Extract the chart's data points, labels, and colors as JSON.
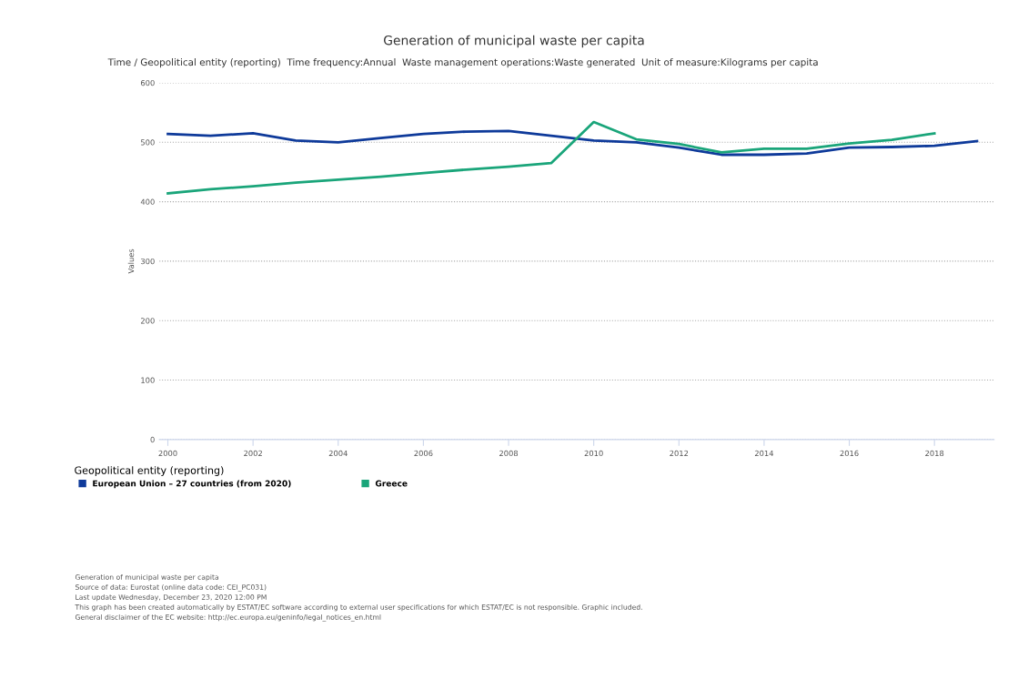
{
  "chart_data": {
    "type": "line",
    "title": "Generation of municipal waste per capita",
    "subtitle": "Time / Geopolitical entity (reporting)  Time frequency:Annual  Waste management operations:Waste generated  Unit of measure:Kilograms per capita",
    "ylabel": "Values",
    "legend_title": "Geopolitical entity (reporting)",
    "x": [
      2000,
      2001,
      2002,
      2003,
      2004,
      2005,
      2006,
      2007,
      2008,
      2009,
      2010,
      2011,
      2012,
      2013,
      2014,
      2015,
      2016,
      2017,
      2018,
      2019
    ],
    "series": [
      {
        "name": "European Union – 27 countries (from 2020)",
        "color": "#0e3a9a",
        "values": [
          514,
          511,
          515,
          503,
          500,
          507,
          514,
          518,
          519,
          511,
          503,
          500,
          491,
          479,
          479,
          481,
          491,
          492,
          494,
          502
        ]
      },
      {
        "name": "Greece",
        "color": "#1aa57a",
        "values": [
          414,
          421,
          426,
          432,
          437,
          442,
          448,
          454,
          459,
          465,
          534,
          505,
          497,
          483,
          489,
          489,
          498,
          504,
          515,
          null
        ]
      }
    ],
    "xlim": [
      1999.8,
      2019.4
    ],
    "xticks": [
      2000,
      2002,
      2004,
      2006,
      2008,
      2010,
      2012,
      2014,
      2016,
      2018
    ],
    "ylim": [
      0,
      600
    ],
    "yticks": [
      0,
      100,
      200,
      300,
      400,
      500,
      600
    ],
    "grid": "y",
    "legend": "bottom left",
    "marker": "none",
    "line_style": "solid",
    "annotations": [
      "Generation of municipal waste per capita",
      "Source of data: Eurostat (online data code: CEI_PC031)",
      "Last update Wednesday, December 23, 2020 12:00 PM",
      "This graph has been created automatically by ESTAT/EC software according to external user specifications for which ESTAT/EC is not responsible. Graphic included.",
      "General disclaimer of the EC website: http://ec.europa.eu/geninfo/legal_notices_en.html"
    ]
  }
}
